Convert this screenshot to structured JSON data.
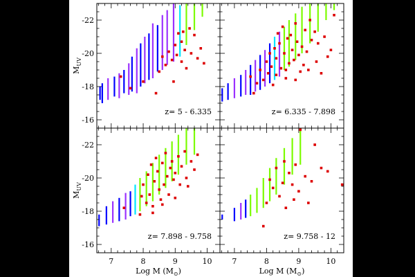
{
  "chart_data": [
    {
      "type": "scatter",
      "title": "",
      "annotation": "z= 5 - 6.335",
      "xlabel": "",
      "ylabel": "M",
      "ylabel_sub": "UV",
      "xlim": [
        6.55,
        10.4
      ],
      "ylim": [
        -15.5,
        -23
      ],
      "yticks": [
        "-22",
        "-20",
        "-18",
        "-16"
      ],
      "xticks": [],
      "ranges": [
        {
          "x": 6.65,
          "y1": -17.2,
          "y2": -18.0,
          "c": "#0000ff"
        },
        {
          "x": 6.72,
          "y1": -17.0,
          "y2": -18.2,
          "c": "#0000ff"
        },
        {
          "x": 6.9,
          "y1": -17.2,
          "y2": -18.5,
          "c": "#9b30ff"
        },
        {
          "x": 7.1,
          "y1": -17.4,
          "y2": -18.6,
          "c": "#0000ff"
        },
        {
          "x": 7.25,
          "y1": -17.3,
          "y2": -18.8,
          "c": "#9b30ff"
        },
        {
          "x": 7.4,
          "y1": -17.6,
          "y2": -19.0,
          "c": "#0000ff"
        },
        {
          "x": 7.55,
          "y1": -17.5,
          "y2": -19.4,
          "c": "#9b30ff"
        },
        {
          "x": 7.65,
          "y1": -17.7,
          "y2": -19.8,
          "c": "#0000ff"
        },
        {
          "x": 7.8,
          "y1": -17.6,
          "y2": -20.3,
          "c": "#9b30ff"
        },
        {
          "x": 7.92,
          "y1": -18.0,
          "y2": -20.6,
          "c": "#0000ff"
        },
        {
          "x": 8.05,
          "y1": -18.2,
          "y2": -21.0,
          "c": "#9b30ff"
        },
        {
          "x": 8.18,
          "y1": -18.4,
          "y2": -21.2,
          "c": "#0000ff"
        },
        {
          "x": 8.3,
          "y1": -18.5,
          "y2": -21.8,
          "c": "#9b30ff"
        },
        {
          "x": 8.45,
          "y1": -18.9,
          "y2": -21.7,
          "c": "#0000ff"
        },
        {
          "x": 8.6,
          "y1": -19.0,
          "y2": -22.3,
          "c": "#9b30ff"
        },
        {
          "x": 8.75,
          "y1": -19.3,
          "y2": -22.6,
          "c": "#9b30ff"
        },
        {
          "x": 8.95,
          "y1": -19.5,
          "y2": -23.0,
          "c": "#9b30ff"
        },
        {
          "x": 9.15,
          "y1": -19.8,
          "y2": -22.9,
          "c": "#00e5ff"
        },
        {
          "x": 9.35,
          "y1": -20.5,
          "y2": -23.0,
          "c": "#7cfc00"
        },
        {
          "x": 9.6,
          "y1": -21.4,
          "y2": -23.0,
          "c": "#7cfc00"
        },
        {
          "x": 9.85,
          "y1": -22.2,
          "y2": -23.0,
          "c": "#7cfc00"
        }
      ],
      "points": [
        [
          7.3,
          -18.6
        ],
        [
          7.6,
          -17.9
        ],
        [
          8.0,
          -18.3
        ],
        [
          8.4,
          -17.6
        ],
        [
          8.6,
          -19.8
        ],
        [
          8.7,
          -19.3
        ],
        [
          8.8,
          -20.1
        ],
        [
          8.9,
          -19.6
        ],
        [
          8.95,
          -18.3
        ],
        [
          9.0,
          -20.5
        ],
        [
          9.05,
          -19.9
        ],
        [
          9.1,
          -21.2
        ],
        [
          9.2,
          -20.7
        ],
        [
          9.25,
          -21.3
        ],
        [
          9.3,
          -20.2
        ],
        [
          9.35,
          -19.1
        ],
        [
          9.45,
          -21.5
        ],
        [
          9.5,
          -20.0
        ],
        [
          9.6,
          -21.1
        ],
        [
          9.8,
          -20.3
        ],
        [
          9.9,
          -19.4
        ],
        [
          8.5,
          -18.9
        ],
        [
          9.2,
          -19.5
        ],
        [
          9.7,
          -19.7
        ]
      ]
    },
    {
      "type": "scatter",
      "title": "",
      "annotation": "z= 6.335 - 7.898",
      "xlabel": "",
      "ylabel": "",
      "ylabel_sub": "",
      "xlim": [
        6.55,
        10.4
      ],
      "ylim": [
        -15.5,
        -23
      ],
      "yticks": [],
      "xticks": [],
      "ranges": [
        {
          "x": 6.62,
          "y1": -17.1,
          "y2": -17.9,
          "c": "#0000ff"
        },
        {
          "x": 6.8,
          "y1": -17.2,
          "y2": -18.2,
          "c": "#0000ff"
        },
        {
          "x": 7.0,
          "y1": -17.3,
          "y2": -18.5,
          "c": "#9b30ff"
        },
        {
          "x": 7.2,
          "y1": -17.4,
          "y2": -18.7,
          "c": "#0000ff"
        },
        {
          "x": 7.35,
          "y1": -17.5,
          "y2": -19.0,
          "c": "#9b30ff"
        },
        {
          "x": 7.5,
          "y1": -17.5,
          "y2": -19.3,
          "c": "#0000ff"
        },
        {
          "x": 7.65,
          "y1": -17.7,
          "y2": -19.6,
          "c": "#9b30ff"
        },
        {
          "x": 7.8,
          "y1": -17.8,
          "y2": -19.9,
          "c": "#0000ff"
        },
        {
          "x": 7.95,
          "y1": -18.0,
          "y2": -20.2,
          "c": "#9b30ff"
        },
        {
          "x": 8.1,
          "y1": -18.2,
          "y2": -20.6,
          "c": "#0000ff"
        },
        {
          "x": 8.25,
          "y1": -18.4,
          "y2": -21.0,
          "c": "#00e5ff"
        },
        {
          "x": 8.4,
          "y1": -18.6,
          "y2": -21.3,
          "c": "#9b30ff"
        },
        {
          "x": 8.55,
          "y1": -19.0,
          "y2": -21.6,
          "c": "#7cfc00"
        },
        {
          "x": 8.7,
          "y1": -19.2,
          "y2": -22.0,
          "c": "#7cfc00"
        },
        {
          "x": 8.9,
          "y1": -19.6,
          "y2": -22.4,
          "c": "#7cfc00"
        },
        {
          "x": 9.1,
          "y1": -20.0,
          "y2": -22.8,
          "c": "#7cfc00"
        },
        {
          "x": 9.35,
          "y1": -20.6,
          "y2": -23.0,
          "c": "#7cfc00"
        },
        {
          "x": 9.6,
          "y1": -21.3,
          "y2": -23.0,
          "c": "#7cfc00"
        },
        {
          "x": 9.85,
          "y1": -22.0,
          "y2": -23.0,
          "c": "#7cfc00"
        },
        {
          "x": 10.1,
          "y1": -22.6,
          "y2": -23.0,
          "c": "#7cfc00"
        }
      ],
      "points": [
        [
          7.5,
          -18.6
        ],
        [
          7.6,
          -17.6
        ],
        [
          7.7,
          -18.2
        ],
        [
          7.8,
          -19.0
        ],
        [
          7.9,
          -18.4
        ],
        [
          8.0,
          -19.5
        ],
        [
          8.05,
          -18.8
        ],
        [
          8.1,
          -20.0
        ],
        [
          8.15,
          -19.2
        ],
        [
          8.2,
          -18.1
        ],
        [
          8.25,
          -20.3
        ],
        [
          8.3,
          -19.7
        ],
        [
          8.35,
          -21.2
        ],
        [
          8.4,
          -20.6
        ],
        [
          8.45,
          -19.1
        ],
        [
          8.5,
          -21.6
        ],
        [
          8.55,
          -20.0
        ],
        [
          8.6,
          -18.5
        ],
        [
          8.65,
          -20.9
        ],
        [
          8.7,
          -19.4
        ],
        [
          8.75,
          -21.1
        ],
        [
          8.8,
          -20.2
        ],
        [
          8.85,
          -19.6
        ],
        [
          8.9,
          -21.8
        ],
        [
          8.95,
          -20.7
        ],
        [
          9.0,
          -19.9
        ],
        [
          9.05,
          -18.9
        ],
        [
          9.1,
          -20.4
        ],
        [
          9.15,
          -19.3
        ],
        [
          9.2,
          -21.4
        ],
        [
          9.25,
          -20.1
        ],
        [
          9.3,
          -19.0
        ],
        [
          9.35,
          -22.0
        ],
        [
          9.4,
          -20.8
        ],
        [
          9.5,
          -21.3
        ],
        [
          9.55,
          -19.5
        ],
        [
          9.6,
          -20.6
        ],
        [
          9.7,
          -18.8
        ],
        [
          9.8,
          -21.0
        ],
        [
          9.9,
          -19.8
        ],
        [
          10.0,
          -20.2
        ],
        [
          10.1,
          -22.3
        ],
        [
          8.3,
          -18.7
        ],
        [
          8.6,
          -19.0
        ],
        [
          8.9,
          -18.4
        ]
      ]
    },
    {
      "type": "scatter",
      "title": "",
      "annotation": "z= 7.898 - 9.758",
      "xlabel": "Log M (M",
      "xlabel_sub": "⊙",
      "ylabel": "M",
      "ylabel_sub": "UV",
      "xlim": [
        6.55,
        10.4
      ],
      "ylim": [
        -15.5,
        -23
      ],
      "yticks": [
        "-22",
        "-20",
        "-18",
        "-16"
      ],
      "xticks": [
        "7",
        "8",
        "9",
        "10"
      ],
      "ranges": [
        {
          "x": 6.62,
          "y1": -17.1,
          "y2": -17.8,
          "c": "#0000ff"
        },
        {
          "x": 6.85,
          "y1": -17.2,
          "y2": -18.3,
          "c": "#0000ff"
        },
        {
          "x": 7.05,
          "y1": -17.3,
          "y2": -18.6,
          "c": "#9b30ff"
        },
        {
          "x": 7.25,
          "y1": -17.4,
          "y2": -18.8,
          "c": "#0000ff"
        },
        {
          "x": 7.45,
          "y1": -17.5,
          "y2": -19.1,
          "c": "#9b30ff"
        },
        {
          "x": 7.6,
          "y1": -17.7,
          "y2": -19.2,
          "c": "#0000ff"
        },
        {
          "x": 7.75,
          "y1": -17.8,
          "y2": -19.6,
          "c": "#00e5ff"
        },
        {
          "x": 7.9,
          "y1": -18.0,
          "y2": -20.0,
          "c": "#7cfc00"
        },
        {
          "x": 8.1,
          "y1": -18.3,
          "y2": -20.4,
          "c": "#7cfc00"
        },
        {
          "x": 8.3,
          "y1": -18.6,
          "y2": -20.9,
          "c": "#7cfc00"
        },
        {
          "x": 8.5,
          "y1": -19.0,
          "y2": -21.4,
          "c": "#7cfc00"
        },
        {
          "x": 8.7,
          "y1": -19.4,
          "y2": -21.8,
          "c": "#7cfc00"
        },
        {
          "x": 8.9,
          "y1": -19.8,
          "y2": -22.2,
          "c": "#7cfc00"
        },
        {
          "x": 9.1,
          "y1": -20.2,
          "y2": -22.6,
          "c": "#7cfc00"
        },
        {
          "x": 9.35,
          "y1": -20.8,
          "y2": -23.0,
          "c": "#7cfc00"
        },
        {
          "x": 9.6,
          "y1": -21.4,
          "y2": -23.0,
          "c": "#7cfc00"
        }
      ],
      "points": [
        [
          7.4,
          -18.2
        ],
        [
          7.9,
          -17.8
        ],
        [
          7.95,
          -18.9
        ],
        [
          8.0,
          -19.6
        ],
        [
          8.1,
          -18.5
        ],
        [
          8.15,
          -20.2
        ],
        [
          8.2,
          -19.0
        ],
        [
          8.25,
          -20.8
        ],
        [
          8.3,
          -18.3
        ],
        [
          8.35,
          -19.8
        ],
        [
          8.4,
          -21.2
        ],
        [
          8.45,
          -20.4
        ],
        [
          8.5,
          -19.3
        ],
        [
          8.55,
          -18.7
        ],
        [
          8.6,
          -20.9
        ],
        [
          8.65,
          -19.6
        ],
        [
          8.7,
          -21.5
        ],
        [
          8.75,
          -20.1
        ],
        [
          8.8,
          -19.0
        ],
        [
          8.85,
          -20.6
        ],
        [
          8.9,
          -21.0
        ],
        [
          8.95,
          -19.9
        ],
        [
          9.0,
          -20.3
        ],
        [
          9.1,
          -21.3
        ],
        [
          9.15,
          -19.6
        ],
        [
          9.2,
          -20.7
        ],
        [
          9.3,
          -21.6
        ],
        [
          9.35,
          -20.0
        ],
        [
          9.4,
          -19.5
        ],
        [
          9.5,
          -21.0
        ],
        [
          9.6,
          -20.5
        ],
        [
          9.7,
          -21.4
        ],
        [
          8.3,
          -17.9
        ],
        [
          8.6,
          -18.4
        ],
        [
          9.0,
          -18.8
        ]
      ]
    },
    {
      "type": "scatter",
      "title": "",
      "annotation": "z= 9.758 - 12",
      "xlabel": "Log M (M",
      "xlabel_sub": "⊙",
      "ylabel": "",
      "ylabel_sub": "",
      "xlim": [
        6.55,
        10.4
      ],
      "ylim": [
        -15.5,
        -23
      ],
      "yticks": [],
      "xticks": [
        "7",
        "8",
        "9",
        "10"
      ],
      "ranges": [
        {
          "x": 6.62,
          "y1": -17.5,
          "y2": -17.8,
          "c": "#0000ff"
        },
        {
          "x": 7.0,
          "y1": -17.4,
          "y2": -18.2,
          "c": "#0000ff"
        },
        {
          "x": 7.2,
          "y1": -17.5,
          "y2": -18.5,
          "c": "#9b30ff"
        },
        {
          "x": 7.35,
          "y1": -17.6,
          "y2": -18.7,
          "c": "#0000ff"
        },
        {
          "x": 7.5,
          "y1": -17.7,
          "y2": -19.0,
          "c": "#7cfc00"
        },
        {
          "x": 7.7,
          "y1": -17.9,
          "y2": -19.4,
          "c": "#7cfc00"
        },
        {
          "x": 7.9,
          "y1": -18.2,
          "y2": -20.0,
          "c": "#7cfc00"
        },
        {
          "x": 8.1,
          "y1": -18.6,
          "y2": -20.6,
          "c": "#7cfc00"
        },
        {
          "x": 8.3,
          "y1": -19.0,
          "y2": -21.2,
          "c": "#7cfc00"
        },
        {
          "x": 8.55,
          "y1": -19.6,
          "y2": -21.8,
          "c": "#7cfc00"
        },
        {
          "x": 8.8,
          "y1": -20.2,
          "y2": -22.4,
          "c": "#7cfc00"
        },
        {
          "x": 9.05,
          "y1": -20.8,
          "y2": -23.0,
          "c": "#7cfc00"
        }
      ],
      "points": [
        [
          7.9,
          -17.1
        ],
        [
          8.0,
          -18.5
        ],
        [
          8.1,
          -19.9
        ],
        [
          8.2,
          -19.4
        ],
        [
          8.3,
          -20.6
        ],
        [
          8.4,
          -18.9
        ],
        [
          8.5,
          -19.7
        ],
        [
          8.55,
          -21.0
        ],
        [
          8.6,
          -18.2
        ],
        [
          8.7,
          -20.3
        ],
        [
          8.8,
          -19.6
        ],
        [
          8.9,
          -20.8
        ],
        [
          9.0,
          -19.2
        ],
        [
          9.05,
          -22.9
        ],
        [
          9.2,
          -20.1
        ],
        [
          9.3,
          -18.5
        ],
        [
          9.4,
          -19.8
        ],
        [
          9.5,
          -22.0
        ],
        [
          9.7,
          -20.6
        ],
        [
          9.9,
          -20.4
        ],
        [
          10.35,
          -19.6
        ],
        [
          8.85,
          -18.7
        ]
      ]
    }
  ],
  "colors": {
    "background": "#000000",
    "panel": "#ffffff",
    "frame": "#000000",
    "point": "#dd0000"
  }
}
